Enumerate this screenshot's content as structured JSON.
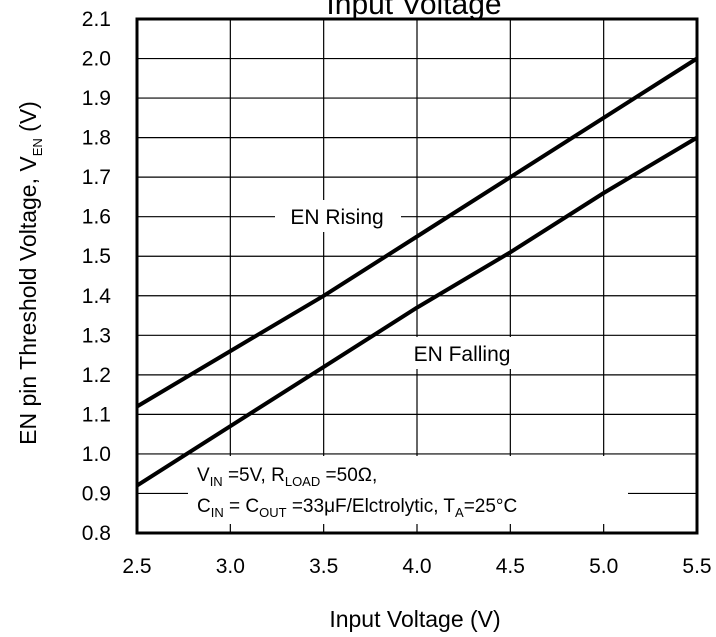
{
  "chart_data": {
    "type": "line",
    "title": "Input Voltage",
    "xlabel": "Input Voltage (V)",
    "ylabel": {
      "main": "EN pin Threshold Voltage, V",
      "sub": "EN",
      "unit": " (V)"
    },
    "xlim": [
      2.5,
      5.5
    ],
    "ylim": [
      0.8,
      2.1
    ],
    "xticks": [
      "2.5",
      "3.0",
      "3.5",
      "4.0",
      "4.5",
      "5.0",
      "5.5"
    ],
    "yticks": [
      "0.8",
      "0.9",
      "1.0",
      "1.1",
      "1.2",
      "1.3",
      "1.4",
      "1.5",
      "1.6",
      "1.7",
      "1.8",
      "1.9",
      "2.0",
      "2.1"
    ],
    "grid": true,
    "series": [
      {
        "name": "EN Rising",
        "x": [
          2.5,
          3.0,
          3.5,
          4.0,
          4.5,
          5.0,
          5.5
        ],
        "values": [
          1.12,
          1.26,
          1.4,
          1.55,
          1.7,
          1.85,
          2.0
        ]
      },
      {
        "name": "EN Falling",
        "x": [
          2.5,
          3.0,
          3.5,
          4.0,
          4.5,
          5.0,
          5.5
        ],
        "values": [
          0.92,
          1.07,
          1.22,
          1.37,
          1.51,
          1.66,
          1.8
        ]
      }
    ],
    "conditions": {
      "line1": {
        "v": "V",
        "v_sub": "IN",
        "v_val": " =5V, R",
        "r_sub": "LOAD",
        "r_val": " =50Ω,"
      },
      "line2": {
        "c": "C",
        "c_sub": "IN",
        "c_mid": " = C",
        "cout_sub": "OUT",
        "c_val": " =33μF/Elctrolytic, T",
        "t_sub": "A",
        "t_val": "=25°C"
      }
    }
  }
}
